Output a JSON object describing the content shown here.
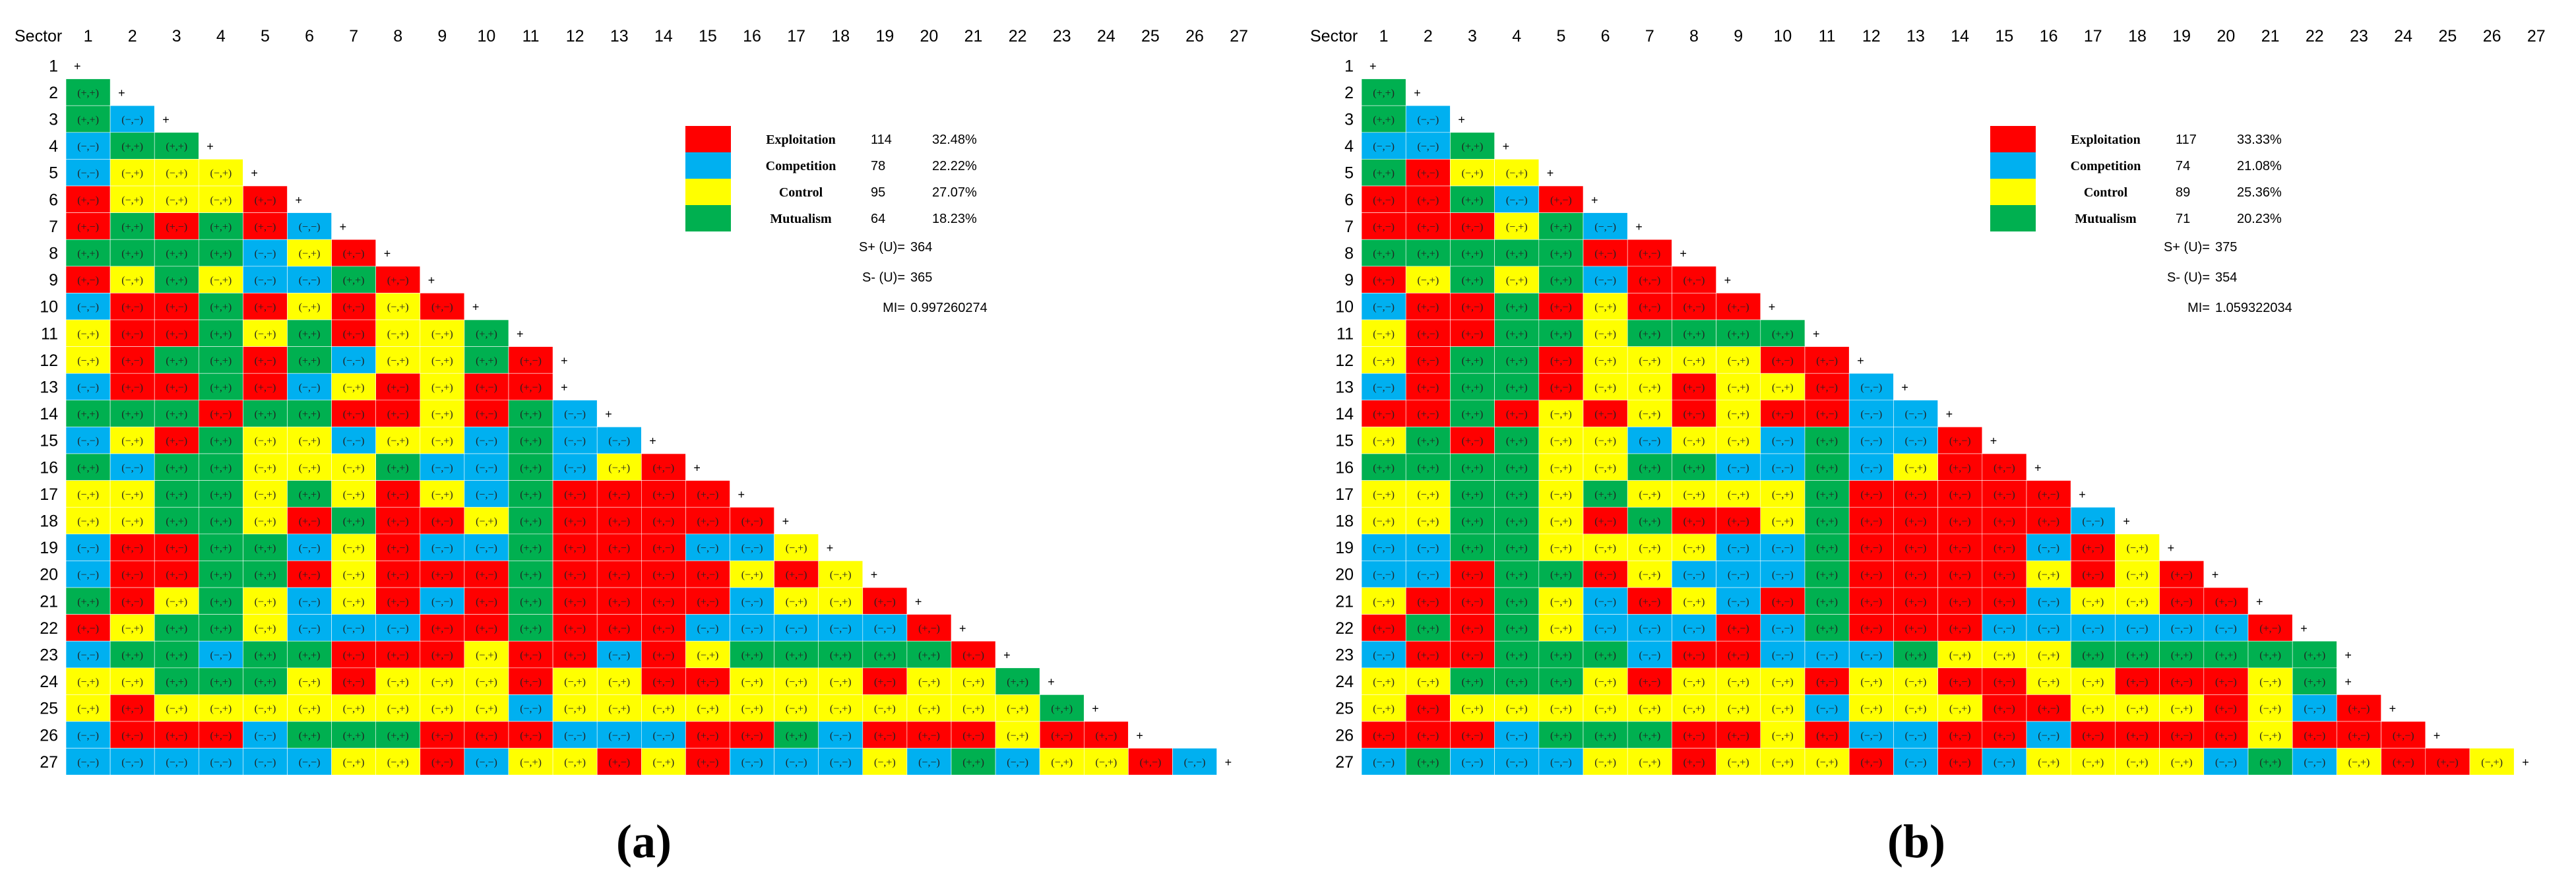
{
  "colors": {
    "Exploitation": "#ff0000",
    "Competition": "#00b0f0",
    "Control": "#ffff00",
    "Mutualism": "#00b050"
  },
  "chart_data": [
    {
      "type": "heatmap",
      "caption": "(a)",
      "corner_label": "Sector",
      "sectors": [
        "1",
        "2",
        "3",
        "4",
        "5",
        "6",
        "7",
        "8",
        "9",
        "10",
        "11",
        "12",
        "13",
        "14",
        "15",
        "16",
        "17",
        "18",
        "19",
        "20",
        "21",
        "22",
        "23",
        "24",
        "25",
        "26",
        "27"
      ],
      "diagonal_label": "+",
      "cell_labels": {
        "Exploitation": "(+,−)",
        "Competition": "(−,−)",
        "Control": "(−,+)",
        "Mutualism": "(+,+)"
      },
      "legend": [
        {
          "name": "Exploitation",
          "count": "114",
          "pct": "32.48%"
        },
        {
          "name": "Competition",
          "count": "78",
          "pct": "22.22%"
        },
        {
          "name": "Control",
          "count": "95",
          "pct": "27.07%"
        },
        {
          "name": "Mutualism",
          "count": "64",
          "pct": "18.23%"
        }
      ],
      "stats": [
        {
          "label": "S+ (U)=",
          "value": "364"
        },
        {
          "label": "S- (U)=",
          "value": "365"
        },
        {
          "label": "MI=",
          "value": "0.997260274"
        }
      ],
      "cells": [
        "",
        "M",
        "MC",
        "CMM",
        "CYYY",
        "EYYYE",
        "EMEMEC",
        "MMMMCYE",
        "EYMYCCME",
        "CEEMEYEYE",
        "YEEMYMEYYM",
        "YEMMEMCYYME",
        "CEEMECYEYEE",
        "MMMEMMEEYEMC",
        "CYEMYYCYYCMCC",
        "MCMMYYYMCCMCYE",
        "YYMMYMYEYCMEEEE",
        "YYMMYEMEEYMEEEEE",
        "CEEMMCYECCMEEECCY",
        "CEEMMEYEEEMEEEEYEY",
        "MEYMYCYECEMEEEECYYE",
        "EYMMYCCCEEMEEECCCCCE",
        "CMMCMMEEEYEECEYMMMMME",
        "YYMMMYEYYYEYYEEYYYEYYM",
        "YEYYYYYYYYCYYYYYYYYYYYM",
        "CEEECMMMEEECCCEEMCEEEYEE",
        "CCCCCCYYECYYEYECCCYCMCYYEC"
      ]
    },
    {
      "type": "heatmap",
      "caption": "(b)",
      "corner_label": "Sector",
      "sectors": [
        "1",
        "2",
        "3",
        "4",
        "5",
        "6",
        "7",
        "8",
        "9",
        "10",
        "11",
        "12",
        "13",
        "14",
        "15",
        "16",
        "17",
        "18",
        "19",
        "20",
        "21",
        "22",
        "23",
        "24",
        "25",
        "26",
        "27"
      ],
      "diagonal_label": "+",
      "cell_labels": {
        "Exploitation": "(+,−)",
        "Competition": "(−,−)",
        "Control": "(−,+)",
        "Mutualism": "(+,+)"
      },
      "legend": [
        {
          "name": "Exploitation",
          "count": "117",
          "pct": "33.33%"
        },
        {
          "name": "Competition",
          "count": "74",
          "pct": "21.08%"
        },
        {
          "name": "Control",
          "count": "89",
          "pct": "25.36%"
        },
        {
          "name": "Mutualism",
          "count": "71",
          "pct": "20.23%"
        }
      ],
      "stats": [
        {
          "label": "S+ (U)=",
          "value": "375"
        },
        {
          "label": "S- (U)=",
          "value": "354"
        },
        {
          "label": "MI=",
          "value": "1.059322034"
        }
      ],
      "cells": [
        "",
        "M",
        "MC",
        "CCM",
        "MEYY",
        "EEMCE",
        "EEEYMC",
        "MMMMMEE",
        "EYMYMCEE",
        "CEEMEYEEE",
        "YEEMMYMMMM",
        "YEMMEYYYYEE",
        "CEMMEYYEYYEC",
        "EEMEYEYEYEECC",
        "YMEMYYCYYCMCCE",
        "MMMMYYMMCCMCYEE",
        "YYMMYMYYYYMEEEEE",
        "YYMMYEMEEYMEEEEEC",
        "CCMMYYYYCCMEEEECEY",
        "CCEMMEYCCCMEEEEYEYE",
        "YEEMYCEYCEMEEEECYYEE",
        "EMEMYCCCECMEEECCCCCCE",
        "CEEMMMCEECCCMYYYMMMMMM",
        "YYMMMYEYYYEYYEEYYEEEYM",
        "YEYYYYYYYYCYYYEEYYYEYCE",
        "EEECMMMEEYECCEECEEEEYEEE",
        "CMCCCYYEYYYECECYYYYCMCYEEY"
      ]
    }
  ]
}
